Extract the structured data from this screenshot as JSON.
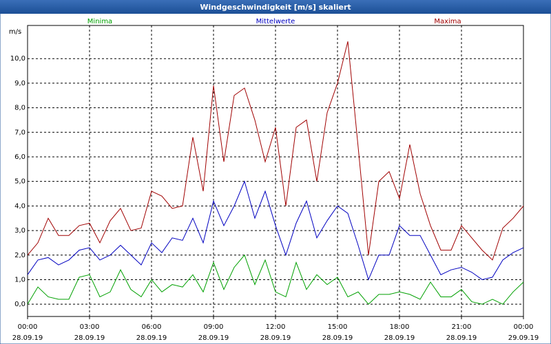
{
  "chart_data": {
    "type": "line",
    "title": "Windgeschwindigkeit [m/s] skaliert",
    "y_label": "m/s",
    "x": [
      0,
      0.5,
      1,
      1.5,
      2,
      2.5,
      3,
      3.5,
      4,
      4.5,
      5,
      5.5,
      6,
      6.5,
      7,
      7.5,
      8,
      8.5,
      9,
      9.5,
      10,
      10.5,
      11,
      11.5,
      12,
      12.5,
      13,
      13.5,
      14,
      14.5,
      15,
      15.5,
      16,
      16.5,
      17,
      17.5,
      18,
      18.5,
      19,
      19.5,
      20,
      20.5,
      21,
      21.5,
      22,
      22.5,
      23,
      23.5,
      24
    ],
    "series": [
      {
        "name": "Minima",
        "color": "#00a000",
        "values": [
          0.0,
          0.7,
          0.3,
          0.2,
          0.2,
          1.1,
          1.2,
          0.3,
          0.5,
          1.4,
          0.6,
          0.3,
          1.0,
          0.5,
          0.8,
          0.7,
          1.2,
          0.5,
          1.7,
          0.6,
          1.5,
          2.0,
          0.8,
          1.8,
          0.5,
          0.3,
          1.7,
          0.6,
          1.2,
          0.8,
          1.1,
          0.3,
          0.5,
          0.0,
          0.4,
          0.4,
          0.5,
          0.4,
          0.2,
          0.9,
          0.3,
          0.3,
          0.6,
          0.1,
          0.0,
          0.2,
          0.0,
          0.5,
          0.9
        ]
      },
      {
        "name": "Mittelwerte",
        "color": "#0000c0",
        "values": [
          1.2,
          1.8,
          1.9,
          1.6,
          1.8,
          2.2,
          2.3,
          1.8,
          2.0,
          2.4,
          2.0,
          1.6,
          2.5,
          2.1,
          2.7,
          2.6,
          3.5,
          2.5,
          4.2,
          3.2,
          4.0,
          5.0,
          3.5,
          4.6,
          3.2,
          2.0,
          3.3,
          4.2,
          2.7,
          3.4,
          4.0,
          3.7,
          2.4,
          1.0,
          2.0,
          2.0,
          3.2,
          2.8,
          2.8,
          2.0,
          1.2,
          1.4,
          1.5,
          1.3,
          1.0,
          1.1,
          1.8,
          2.1,
          2.3
        ]
      },
      {
        "name": "Maxima",
        "color": "#a00000",
        "values": [
          2.0,
          2.5,
          3.5,
          2.8,
          2.8,
          3.2,
          3.3,
          2.5,
          3.4,
          3.9,
          3.0,
          3.1,
          4.6,
          4.4,
          3.9,
          4.0,
          6.8,
          4.6,
          8.9,
          5.8,
          8.5,
          8.8,
          7.5,
          5.8,
          7.2,
          4.0,
          7.2,
          7.5,
          5.0,
          7.8,
          9.0,
          10.7,
          6.4,
          2.0,
          5.0,
          5.4,
          4.3,
          6.5,
          4.5,
          3.2,
          2.2,
          2.2,
          3.2,
          2.7,
          2.2,
          1.8,
          3.1,
          3.5,
          4.0
        ]
      }
    ],
    "xlim": [
      0,
      24
    ],
    "xticks": [
      {
        "value": 0,
        "label": "00:00",
        "date": "28.09.19"
      },
      {
        "value": 3,
        "label": "03:00",
        "date": "28.09.19"
      },
      {
        "value": 6,
        "label": "06:00",
        "date": "28.09.19"
      },
      {
        "value": 9,
        "label": "09:00",
        "date": "28.09.19"
      },
      {
        "value": 12,
        "label": "12:00",
        "date": "28.09.19"
      },
      {
        "value": 15,
        "label": "15:00",
        "date": "28.09.19"
      },
      {
        "value": 18,
        "label": "18:00",
        "date": "28.09.19"
      },
      {
        "value": 21,
        "label": "21:00",
        "date": "28.09.19"
      },
      {
        "value": 24,
        "label": "00:00",
        "date": "29.09.19"
      }
    ],
    "ylim": [
      -0.5,
      11.35
    ],
    "yticks": [
      {
        "value": 0,
        "label": "0,0"
      },
      {
        "value": 1,
        "label": "1,0"
      },
      {
        "value": 2,
        "label": "2,0"
      },
      {
        "value": 3,
        "label": "3,0"
      },
      {
        "value": 4,
        "label": "4,0"
      },
      {
        "value": 5,
        "label": "5,0"
      },
      {
        "value": 6,
        "label": "6,0"
      },
      {
        "value": 7,
        "label": "7,0"
      },
      {
        "value": 8,
        "label": "8,0"
      },
      {
        "value": 9,
        "label": "9,0"
      },
      {
        "value": 10,
        "label": "10,0"
      }
    ],
    "grid": true
  }
}
